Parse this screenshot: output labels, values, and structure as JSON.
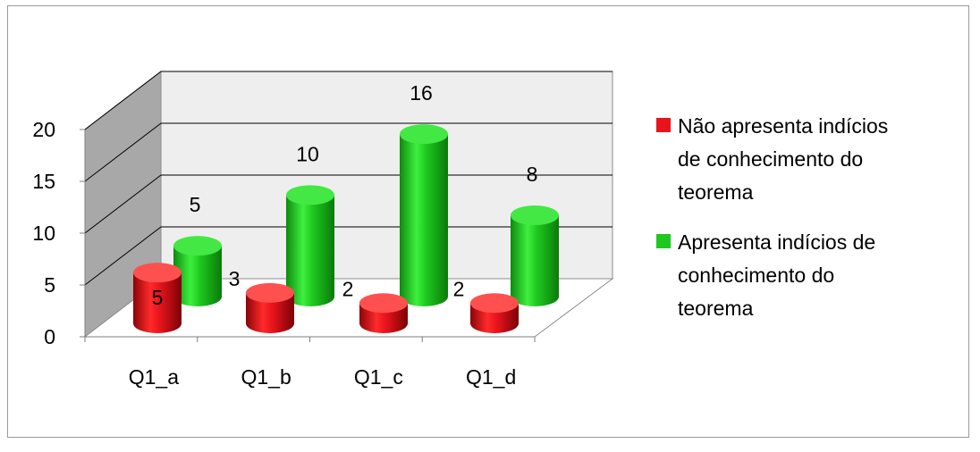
{
  "chart_data": {
    "type": "bar",
    "categories": [
      "Q1_a",
      "Q1_b",
      "Q1_c",
      "Q1_d"
    ],
    "series": [
      {
        "name": "Não apresenta indícios de conhecimento do teorema",
        "values": [
          5,
          3,
          2,
          2
        ],
        "color": "#e8141c"
      },
      {
        "name": "Apresenta indícios de conhecimento do teorema",
        "values": [
          5,
          10,
          16,
          8
        ],
        "color": "#1ec81e"
      }
    ],
    "y_ticks": [
      "0",
      "5",
      "10",
      "15",
      "20"
    ],
    "ylim": [
      0,
      20
    ],
    "grid": true,
    "legend_position": "right",
    "legend": {
      "series_0_lines": [
        "Não apresenta indícios",
        "de conhecimento do",
        "teorema"
      ],
      "series_1_lines": [
        "Apresenta indícios de",
        "conhecimento do",
        "teorema"
      ]
    }
  }
}
